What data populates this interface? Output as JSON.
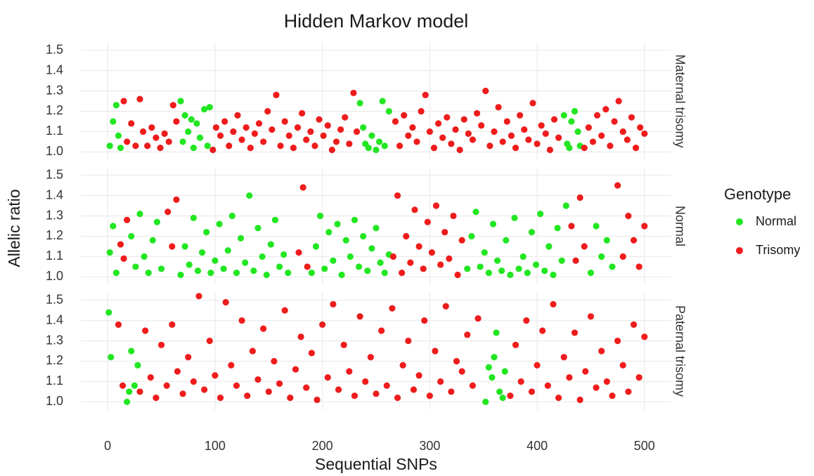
{
  "chart_data": {
    "type": "scatter",
    "title": "Hidden Markov model",
    "x_label": "Sequential SNPs",
    "y_label": "Allelic ratio",
    "legend_title": "Genotype",
    "legend_position": "right",
    "grid": true,
    "xlim": [
      -25,
      525
    ],
    "xticks": [
      0,
      100,
      200,
      300,
      400,
      500
    ],
    "ylim": [
      0.96,
      1.54
    ],
    "yticks": [
      {
        "value": 1,
        "label": "1.0"
      },
      1.1,
      1.2,
      1.3,
      1.4,
      1.5
    ],
    "facets": [
      {
        "label": "Maternal trisomy",
        "series": [
          {
            "name": "Normal",
            "color": "#22e622",
            "x": [
              2,
              5,
              8,
              10,
              12,
              68,
              70,
              72,
              75,
              78,
              80,
              83,
              86,
              90,
              93,
              95,
              235,
              238,
              240,
              243,
              246,
              250,
              253,
              256,
              258,
              262,
              425,
              428,
              430,
              432,
              435,
              438,
              440
            ],
            "values": [
              1.03,
              1.15,
              1.23,
              1.08,
              1.02,
              1.25,
              1.05,
              1.18,
              1.1,
              1.16,
              1.02,
              1.14,
              1.07,
              1.21,
              1.03,
              1.22,
              1.24,
              1.12,
              1.04,
              1.02,
              1.08,
              1.01,
              1.05,
              1.25,
              1.03,
              1.2,
              1.18,
              1.04,
              1.02,
              1.15,
              1.2,
              1.1,
              1.03
            ]
          },
          {
            "name": "Trisomy",
            "color": "#ee1c1c",
            "x": [
              15,
              18,
              22,
              26,
              30,
              33,
              37,
              41,
              45,
              49,
              53,
              57,
              61,
              64,
              98,
              101,
              105,
              109,
              113,
              117,
              121,
              125,
              129,
              133,
              137,
              141,
              145,
              149,
              153,
              157,
              161,
              165,
              169,
              173,
              177,
              181,
              185,
              189,
              193,
              197,
              201,
              205,
              209,
              213,
              217,
              221,
              225,
              229,
              232,
              268,
              272,
              276,
              280,
              284,
              288,
              292,
              296,
              300,
              304,
              308,
              312,
              316,
              320,
              324,
              328,
              332,
              336,
              340,
              344,
              348,
              352,
              356,
              360,
              364,
              368,
              372,
              376,
              380,
              384,
              388,
              392,
              396,
              400,
              404,
              408,
              412,
              416,
              420,
              444,
              448,
              452,
              456,
              460,
              464,
              468,
              472,
              476,
              480,
              484,
              488,
              492,
              496,
              500
            ],
            "values": [
              1.25,
              1.05,
              1.14,
              1.03,
              1.26,
              1.1,
              1.03,
              1.12,
              1.07,
              1.02,
              1.09,
              1.05,
              1.23,
              1.15,
              1.01,
              1.12,
              1.08,
              1.15,
              1.03,
              1.1,
              1.18,
              1.06,
              1.12,
              1.02,
              1.09,
              1.14,
              1.05,
              1.2,
              1.11,
              1.28,
              1.03,
              1.15,
              1.08,
              1.02,
              1.12,
              1.19,
              1.06,
              1.1,
              1.03,
              1.16,
              1.08,
              1.13,
              1.01,
              1.05,
              1.11,
              1.17,
              1.04,
              1.29,
              1.1,
              1.15,
              1.03,
              1.18,
              1.08,
              1.12,
              1.05,
              1.2,
              1.28,
              1.1,
              1.02,
              1.14,
              1.07,
              1.17,
              1.04,
              1.11,
              1.01,
              1.16,
              1.09,
              1.06,
              1.19,
              1.13,
              1.3,
              1.03,
              1.1,
              1.22,
              1.05,
              1.15,
              1.08,
              1.02,
              1.18,
              1.11,
              1.06,
              1.24,
              1.04,
              1.13,
              1.09,
              1.01,
              1.16,
              1.07,
              1.02,
              1.12,
              1.05,
              1.18,
              1.08,
              1.21,
              1.03,
              1.15,
              1.25,
              1.1,
              1.06,
              1.17,
              1.02,
              1.12,
              1.09
            ]
          }
        ]
      },
      {
        "label": "Normal",
        "series": [
          {
            "name": "Normal",
            "color": "#22e622",
            "x": [
              2,
              5,
              8,
              22,
              26,
              30,
              34,
              38,
              42,
              46,
              50,
              68,
              72,
              76,
              80,
              84,
              88,
              92,
              96,
              100,
              104,
              108,
              112,
              116,
              120,
              124,
              128,
              132,
              136,
              140,
              144,
              148,
              152,
              156,
              160,
              164,
              168,
              190,
              194,
              198,
              202,
              206,
              210,
              214,
              218,
              222,
              226,
              230,
              234,
              238,
              242,
              246,
              250,
              254,
              258,
              262,
              335,
              339,
              343,
              347,
              351,
              355,
              359,
              363,
              367,
              371,
              375,
              379,
              383,
              387,
              391,
              395,
              399,
              403,
              407,
              411,
              415,
              419,
              423,
              427,
              450,
              455,
              460,
              465,
              470
            ],
            "values": [
              1.12,
              1.25,
              1.02,
              1.2,
              1.05,
              1.31,
              1.1,
              1.02,
              1.18,
              1.27,
              1.04,
              1.01,
              1.15,
              1.06,
              1.29,
              1.03,
              1.12,
              1.22,
              1.02,
              1.08,
              1.26,
              1.04,
              1.13,
              1.3,
              1.02,
              1.19,
              1.07,
              1.4,
              1.03,
              1.24,
              1.1,
              1.01,
              1.16,
              1.28,
              1.05,
              1.11,
              1.02,
              1.02,
              1.15,
              1.3,
              1.04,
              1.22,
              1.08,
              1.26,
              1.01,
              1.18,
              1.1,
              1.28,
              1.05,
              1.2,
              1.03,
              1.14,
              1.24,
              1.07,
              1.02,
              1.11,
              1.04,
              1.2,
              1.32,
              1.05,
              1.12,
              1.02,
              1.26,
              1.08,
              1.03,
              1.18,
              1.01,
              1.29,
              1.04,
              1.1,
              1.02,
              1.22,
              1.06,
              1.31,
              1.03,
              1.15,
              1.01,
              1.24,
              1.08,
              1.35,
              1.02,
              1.25,
              1.1,
              1.18,
              1.05
            ]
          },
          {
            "name": "Trisomy",
            "color": "#ee1c1c",
            "x": [
              12,
              15,
              18,
              56,
              60,
              64,
              178,
              182,
              186,
              266,
              270,
              274,
              278,
              282,
              286,
              290,
              294,
              298,
              302,
              306,
              310,
              314,
              318,
              322,
              326,
              330,
              432,
              436,
              440,
              444,
              475,
              480,
              485,
              490,
              495,
              500
            ],
            "values": [
              1.16,
              1.09,
              1.28,
              1.32,
              1.15,
              1.38,
              1.12,
              1.44,
              1.05,
              1.1,
              1.4,
              1.02,
              1.2,
              1.07,
              1.33,
              1.15,
              1.04,
              1.27,
              1.12,
              1.35,
              1.06,
              1.22,
              1.09,
              1.3,
              1.01,
              1.18,
              1.25,
              1.08,
              1.39,
              1.15,
              1.45,
              1.1,
              1.3,
              1.18,
              1.05,
              1.25
            ]
          }
        ]
      },
      {
        "label": "Paternal trisomy",
        "series": [
          {
            "name": "Normal",
            "color": "#22e622",
            "x": [
              1,
              3,
              18,
              20,
              22,
              25,
              28,
              352,
              355,
              358,
              360,
              362,
              365,
              368,
              370
            ],
            "values": [
              1.44,
              1.22,
              1.0,
              1.05,
              1.25,
              1.08,
              1.18,
              1.0,
              1.17,
              1.12,
              1.22,
              1.34,
              1.05,
              1.02,
              1.15
            ]
          },
          {
            "name": "Trisomy",
            "color": "#ee1c1c",
            "x": [
              10,
              14,
              30,
              35,
              40,
              45,
              50,
              55,
              60,
              65,
              70,
              75,
              80,
              85,
              90,
              95,
              100,
              105,
              110,
              115,
              120,
              125,
              130,
              135,
              140,
              145,
              150,
              155,
              160,
              165,
              170,
              175,
              180,
              185,
              190,
              195,
              200,
              205,
              210,
              215,
              220,
              225,
              230,
              235,
              240,
              245,
              250,
              255,
              260,
              265,
              270,
              275,
              280,
              285,
              290,
              295,
              300,
              305,
              310,
              315,
              320,
              325,
              330,
              335,
              340,
              345,
              375,
              380,
              385,
              390,
              395,
              400,
              405,
              410,
              415,
              420,
              425,
              430,
              435,
              440,
              445,
              450,
              455,
              460,
              465,
              470,
              475,
              480,
              485,
              490,
              495,
              500
            ],
            "values": [
              1.38,
              1.08,
              1.05,
              1.35,
              1.12,
              1.02,
              1.28,
              1.08,
              1.38,
              1.15,
              1.04,
              1.22,
              1.1,
              1.52,
              1.06,
              1.3,
              1.13,
              1.02,
              1.49,
              1.18,
              1.08,
              1.4,
              1.03,
              1.25,
              1.11,
              1.36,
              1.05,
              1.2,
              1.09,
              1.45,
              1.02,
              1.16,
              1.32,
              1.07,
              1.24,
              1.01,
              1.38,
              1.12,
              1.48,
              1.06,
              1.28,
              1.15,
              1.03,
              1.42,
              1.1,
              1.22,
              1.04,
              1.35,
              1.08,
              1.46,
              1.02,
              1.18,
              1.3,
              1.06,
              1.13,
              1.4,
              1.03,
              1.25,
              1.1,
              1.47,
              1.05,
              1.2,
              1.15,
              1.33,
              1.08,
              1.41,
              1.03,
              1.28,
              1.1,
              1.4,
              1.05,
              1.18,
              1.35,
              1.08,
              1.48,
              1.02,
              1.22,
              1.12,
              1.34,
              1.01,
              1.15,
              1.42,
              1.07,
              1.25,
              1.1,
              1.03,
              1.3,
              1.18,
              1.05,
              1.38,
              1.12,
              1.32
            ]
          }
        ]
      }
    ]
  }
}
